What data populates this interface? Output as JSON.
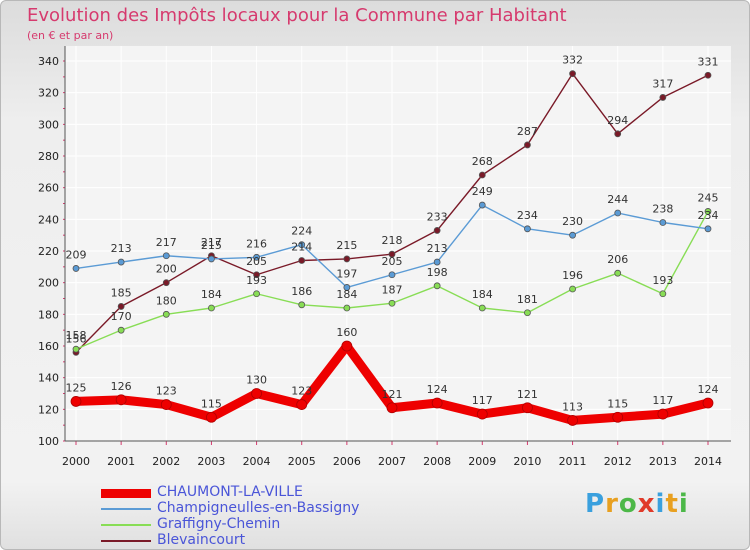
{
  "chart_data": {
    "type": "line",
    "title": "Evolution des Impôts locaux pour la Commune par Habitant",
    "subtitle": "(en € et par an)",
    "xlabel": "",
    "ylabel": "",
    "ylim": [
      100,
      340
    ],
    "yticks": [
      100,
      120,
      140,
      160,
      180,
      200,
      220,
      240,
      260,
      280,
      300,
      320,
      340
    ],
    "x": [
      2000,
      2001,
      2002,
      2003,
      2004,
      2005,
      2006,
      2007,
      2008,
      2009,
      2010,
      2011,
      2012,
      2013,
      2014
    ],
    "grid": true,
    "legend_position": "bottom-left",
    "series": [
      {
        "name": "CHAUMONT-LA-VILLE",
        "color": "#ee0000",
        "values": [
          125,
          126,
          123,
          115,
          130,
          123,
          160,
          121,
          124,
          117,
          121,
          113,
          115,
          117,
          124
        ]
      },
      {
        "name": "Champigneulles-en-Bassigny",
        "color": "#5b9bd5",
        "values": [
          209,
          213,
          217,
          215,
          216,
          224,
          197,
          205,
          213,
          249,
          234,
          230,
          244,
          238,
          234
        ]
      },
      {
        "name": "Graffigny-Chemin",
        "color": "#88dd55",
        "values": [
          158,
          170,
          180,
          184,
          193,
          186,
          184,
          187,
          198,
          184,
          181,
          196,
          206,
          193,
          245
        ]
      },
      {
        "name": "Blevaincourt",
        "color": "#7a1a28",
        "values": [
          156,
          185,
          200,
          217,
          205,
          214,
          215,
          218,
          233,
          268,
          287,
          332,
          294,
          317,
          331
        ]
      }
    ]
  },
  "logo": {
    "text": "Proxiti"
  }
}
